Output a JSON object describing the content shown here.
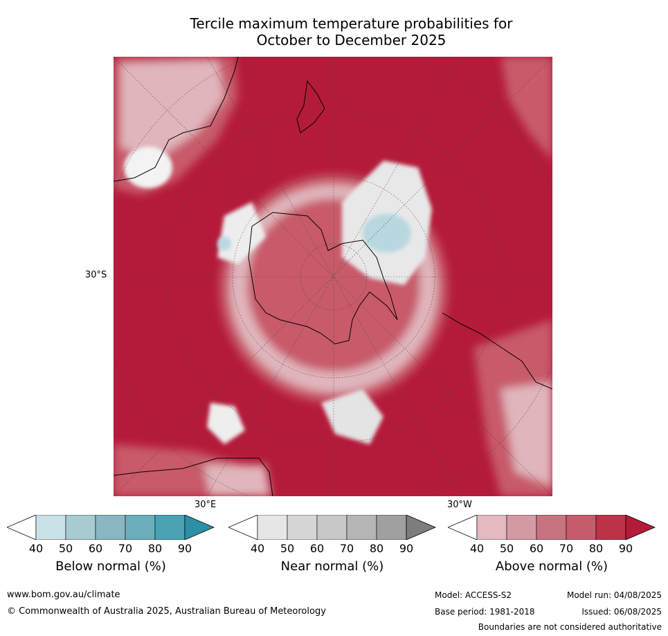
{
  "title_line1": "Tercile maximum temperature probabilities for",
  "title_line2": "October to December 2025",
  "map": {
    "lat_label": "30°S",
    "lon_labels": [
      "30°E",
      "30°W"
    ],
    "colors": {
      "ocean_warm": "#b41b3a",
      "warm_mid": "#c85a6b",
      "warm_light": "#e0b5bc",
      "near": "#e4e4e4",
      "cold": "#b8d8e0",
      "coast": "#000000",
      "grid": "#555555"
    }
  },
  "colorbars": [
    {
      "name": "below",
      "label": "Below normal (%)",
      "ticks": [
        "40",
        "50",
        "60",
        "70",
        "80",
        "90"
      ],
      "colors": [
        "#ffffff",
        "#c9e2e8",
        "#a8cad1",
        "#8ab6c2",
        "#6aadbb",
        "#48a2b4",
        "#2b8fa5"
      ]
    },
    {
      "name": "near",
      "label": "Near normal (%)",
      "ticks": [
        "40",
        "50",
        "60",
        "70",
        "80",
        "90"
      ],
      "colors": [
        "#ffffff",
        "#e6e6e6",
        "#d6d6d6",
        "#c8c8c8",
        "#b6b6b6",
        "#a0a0a0",
        "#7d7d7d"
      ]
    },
    {
      "name": "above",
      "label": "Above normal (%)",
      "ticks": [
        "40",
        "50",
        "60",
        "70",
        "80",
        "90"
      ],
      "colors": [
        "#ffffff",
        "#e4b9c0",
        "#d49aa3",
        "#c87480",
        "#c65b6c",
        "#bd3248",
        "#b41b3a"
      ]
    }
  ],
  "footer": {
    "website": "www.bom.gov.au/climate",
    "copyright": "© Commonwealth of Australia 2025, Australian Bureau of Meteorology",
    "model": "Model: ACCESS-S2",
    "model_run": "Model run: 04/08/2025",
    "base_period": "Base period: 1981-2018",
    "issued": "Issued: 06/08/2025",
    "disclaimer": "Boundaries are not considered authoritative"
  }
}
